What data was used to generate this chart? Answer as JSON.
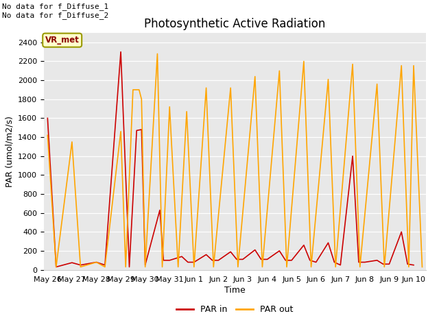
{
  "title": "Photosynthetic Active Radiation",
  "xlabel": "Time",
  "ylabel": "PAR (umol/m2/s)",
  "annotations": [
    "No data for f_Diffuse_1",
    "No data for f_Diffuse_2"
  ],
  "box_label": "VR_met",
  "legend": [
    "PAR in",
    "PAR out"
  ],
  "ylim": [
    0,
    2500
  ],
  "background_color": "#e8e8e8",
  "x_ticks": [
    "May 26",
    "May 27",
    "May 28",
    "May 29",
    "May 30",
    "May 31",
    "Jun 1",
    "Jun 2",
    "Jun 3",
    "Jun 4",
    "Jun 5",
    "Jun 6",
    "Jun 7",
    "Jun 8",
    "Jun 9",
    "Jun 10"
  ],
  "par_in_color": "#cc0000",
  "par_out_color": "#ffa500",
  "title_fontsize": 12,
  "axis_fontsize": 9,
  "tick_fontsize": 8,
  "par_in_data": [
    [
      0.0,
      1600
    ],
    [
      0.35,
      30
    ],
    [
      1.0,
      75
    ],
    [
      1.35,
      50
    ],
    [
      2.0,
      80
    ],
    [
      2.35,
      50
    ],
    [
      3.0,
      2300
    ],
    [
      3.35,
      30
    ],
    [
      3.65,
      1470
    ],
    [
      3.85,
      1480
    ],
    [
      4.0,
      50
    ],
    [
      4.6,
      630
    ],
    [
      4.75,
      100
    ],
    [
      5.0,
      100
    ],
    [
      5.5,
      140
    ],
    [
      5.75,
      80
    ],
    [
      6.0,
      80
    ],
    [
      6.5,
      160
    ],
    [
      6.75,
      100
    ],
    [
      7.0,
      100
    ],
    [
      7.5,
      190
    ],
    [
      7.75,
      110
    ],
    [
      8.0,
      110
    ],
    [
      8.5,
      210
    ],
    [
      8.75,
      110
    ],
    [
      9.0,
      110
    ],
    [
      9.5,
      200
    ],
    [
      9.75,
      100
    ],
    [
      10.0,
      100
    ],
    [
      10.5,
      260
    ],
    [
      10.75,
      100
    ],
    [
      11.0,
      80
    ],
    [
      11.5,
      285
    ],
    [
      11.75,
      80
    ],
    [
      12.0,
      50
    ],
    [
      12.5,
      1200
    ],
    [
      12.75,
      80
    ],
    [
      13.0,
      80
    ],
    [
      13.5,
      100
    ],
    [
      13.75,
      60
    ],
    [
      14.0,
      60
    ],
    [
      14.5,
      400
    ],
    [
      14.75,
      60
    ],
    [
      15.0,
      50
    ]
  ],
  "par_out_data": [
    [
      0.0,
      1420
    ],
    [
      0.35,
      30
    ],
    [
      1.0,
      1350
    ],
    [
      1.35,
      30
    ],
    [
      2.0,
      80
    ],
    [
      2.35,
      30
    ],
    [
      3.0,
      1460
    ],
    [
      3.2,
      30
    ],
    [
      3.5,
      1900
    ],
    [
      3.75,
      1900
    ],
    [
      3.85,
      1800
    ],
    [
      4.0,
      30
    ],
    [
      4.5,
      2280
    ],
    [
      4.7,
      30
    ],
    [
      5.0,
      1720
    ],
    [
      5.35,
      30
    ],
    [
      5.7,
      1670
    ],
    [
      6.0,
      30
    ],
    [
      6.5,
      1920
    ],
    [
      6.8,
      30
    ],
    [
      7.5,
      1920
    ],
    [
      7.8,
      30
    ],
    [
      8.5,
      2040
    ],
    [
      8.8,
      30
    ],
    [
      9.5,
      2100
    ],
    [
      9.8,
      30
    ],
    [
      10.5,
      2200
    ],
    [
      10.8,
      30
    ],
    [
      11.5,
      2010
    ],
    [
      11.8,
      30
    ],
    [
      12.5,
      2170
    ],
    [
      12.8,
      30
    ],
    [
      13.5,
      1960
    ],
    [
      13.8,
      30
    ],
    [
      14.5,
      2155
    ],
    [
      14.8,
      30
    ],
    [
      15.0,
      2155
    ],
    [
      15.35,
      30
    ]
  ]
}
